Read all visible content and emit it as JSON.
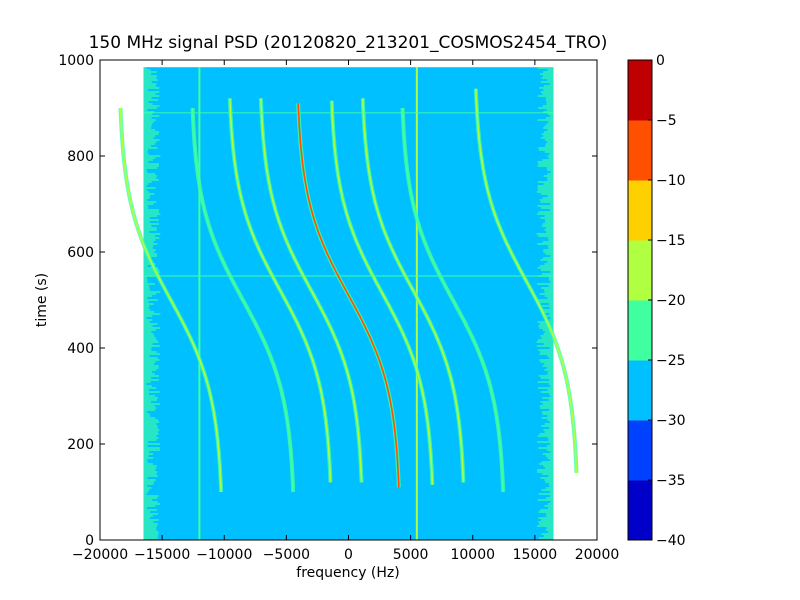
{
  "chart_data": {
    "type": "heatmap",
    "title": "150 MHz signal PSD (20120820_213201_COSMOS2454_TRO)",
    "xlabel": "frequency (Hz)",
    "ylabel": "time (s)",
    "xlim": [
      -20000,
      20000
    ],
    "ylim": [
      0,
      1000
    ],
    "xticks": [
      -20000,
      -15000,
      -10000,
      -5000,
      0,
      5000,
      10000,
      15000,
      20000
    ],
    "xtick_labels": [
      "−20000",
      "−15000",
      "−10000",
      "−5000",
      "0",
      "5000",
      "10000",
      "15000",
      "20000"
    ],
    "yticks": [
      0,
      200,
      400,
      600,
      800,
      1000
    ],
    "ytick_labels": [
      "0",
      "200",
      "400",
      "600",
      "800",
      "1000"
    ],
    "data_extent": {
      "x": [
        -16500,
        16500
      ],
      "y": [
        0,
        985
      ]
    },
    "background_level": -28,
    "colorbar": {
      "levels": [
        -40,
        -35,
        -30,
        -25,
        -20,
        -15,
        -10,
        -5,
        0
      ],
      "tick_labels": [
        "−40",
        "−35",
        "−30",
        "−25",
        "−20",
        "−15",
        "−10",
        "−5",
        "0"
      ],
      "colors": [
        "#0000c8",
        "#0040ff",
        "#00c0ff",
        "#40ffa0",
        "#b0ff40",
        "#ffd000",
        "#ff5000",
        "#c00000"
      ]
    },
    "traces": [
      {
        "center_freq": 0,
        "center_time": 510,
        "level": -10
      },
      {
        "center_freq": -3000,
        "center_time": 520,
        "level": -18
      },
      {
        "center_freq": -5500,
        "center_time": 520,
        "level": -18
      },
      {
        "center_freq": 2700,
        "center_time": 515,
        "level": -18
      },
      {
        "center_freq": 5200,
        "center_time": 520,
        "level": -18
      },
      {
        "center_freq": -8500,
        "center_time": 500,
        "level": -22
      },
      {
        "center_freq": 8400,
        "center_time": 500,
        "level": -22
      },
      {
        "center_freq": -14300,
        "center_time": 500,
        "level": -20
      },
      {
        "center_freq": 14300,
        "center_time": 540,
        "level": -20
      }
    ],
    "vertical_lines": [
      {
        "freq": -12000,
        "level": -22
      },
      {
        "freq": 5500,
        "level": -20
      }
    ],
    "horizontal_lines": [
      {
        "time": 550,
        "level": -24
      },
      {
        "time": 890,
        "level": -24
      }
    ]
  }
}
